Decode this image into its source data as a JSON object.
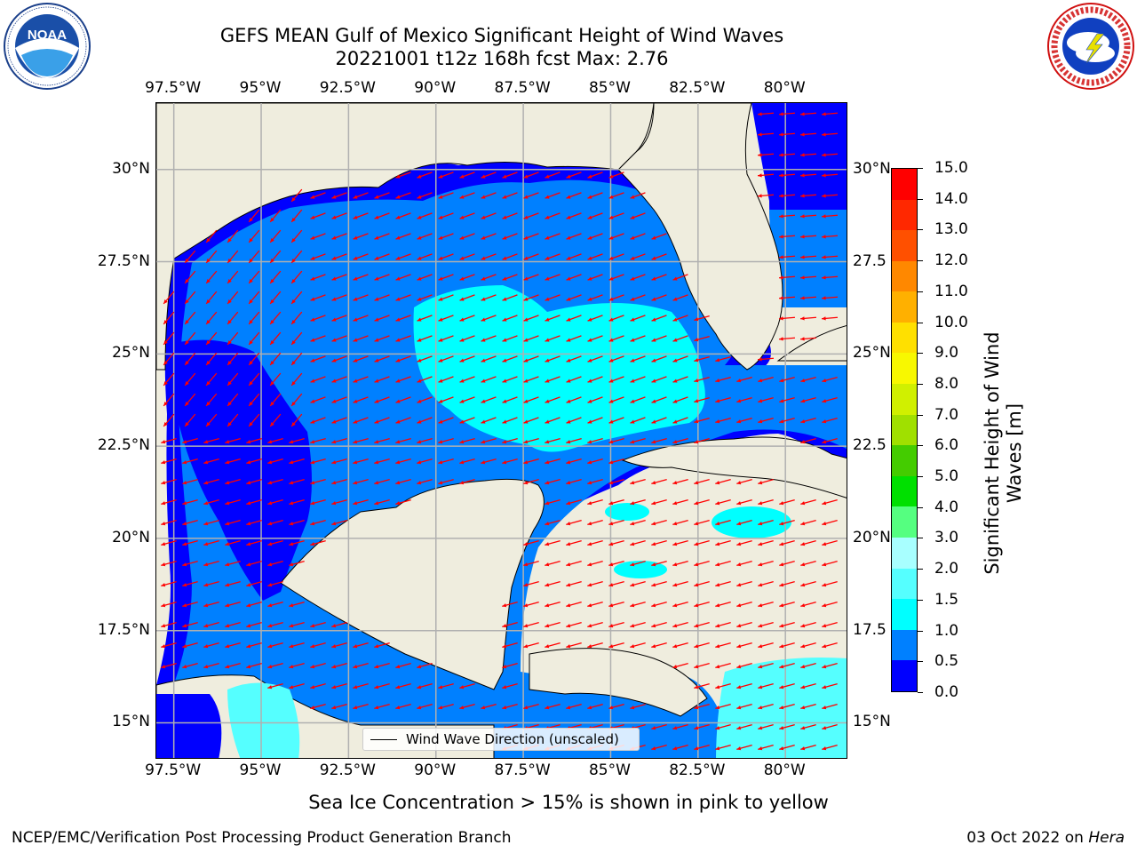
{
  "title": {
    "line1": "GEFS MEAN Gulf of Mexico Significant Height of Wind Waves",
    "line2": "20221001 t12z 168h fcst   Max: 2.76"
  },
  "logos": {
    "left": "NOAA",
    "left_ring": "NATIONAL OCEANIC AND ATMOSPHERIC ADMINISTRATION · U.S. DEPARTMENT OF COMMERCE",
    "right_ring": "NATIONAL WEATHER SERVICE"
  },
  "axes": {
    "x_ticks": [
      "97.5°W",
      "95°W",
      "92.5°W",
      "90°W",
      "87.5°W",
      "85°W",
      "82.5°W",
      "80°W"
    ],
    "y_ticks_left": [
      "30°N",
      "27.5°N",
      "25°N",
      "22.5°N",
      "20°N",
      "17.5°N",
      "15°N"
    ],
    "y_ticks_right": [
      "30°N",
      "27.5",
      "25°N",
      "22.5",
      "20°N",
      "17.5",
      "15°N"
    ],
    "lon_range": [
      -98,
      -78.2
    ],
    "lat_range": [
      14.0,
      31.8
    ]
  },
  "legend": {
    "label": "Wind Wave Direction (unscaled)"
  },
  "colorbar": {
    "label_line1": "Significant Height of Wind",
    "label_line2": "Waves [m]",
    "ticks": [
      "0.0",
      "0.5",
      "1.0",
      "1.5",
      "2.0",
      "3.0",
      "4.0",
      "5.0",
      "6.0",
      "7.0",
      "8.0",
      "9.0",
      "10.0",
      "11.0",
      "12.0",
      "13.0",
      "14.0",
      "15.0"
    ],
    "colors": [
      "#0000ff",
      "#0080ff",
      "#00ffff",
      "#55ffff",
      "#a8ffff",
      "#55ff80",
      "#00e000",
      "#44cc00",
      "#a0e000",
      "#d0f000",
      "#f8f800",
      "#ffe000",
      "#ffb000",
      "#ff8800",
      "#ff5000",
      "#ff2800",
      "#ff0000"
    ]
  },
  "colors": {
    "land": "#efedde",
    "arrow": "#ff0000",
    "grid": "#b0b0b0",
    "coast": "#000000"
  },
  "notes": {
    "ice": "Sea Ice Concentration > 15% is shown in pink to yellow"
  },
  "footer": {
    "left": "NCEP/EMC/Verification Post Processing Product Generation Branch",
    "date": "03 Oct 2022 on",
    "host": "Hera"
  }
}
